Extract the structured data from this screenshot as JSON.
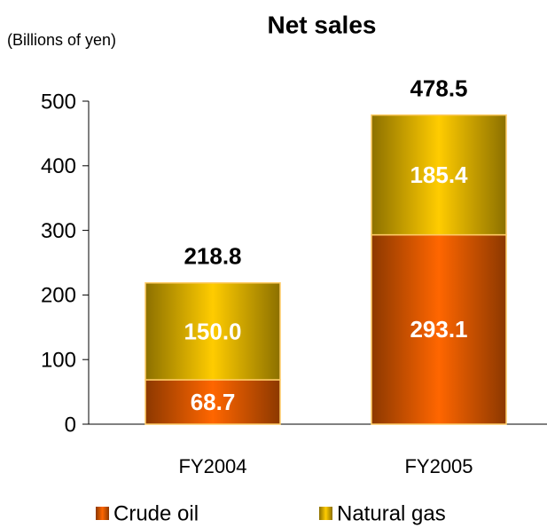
{
  "chart_data": {
    "type": "stacked_bar",
    "title": "Net sales",
    "y_axis_label": "(Billions of yen)",
    "categories": [
      "FY2004",
      "FY2005"
    ],
    "series": [
      {
        "name": "Crude oil",
        "color": "#ff6600",
        "values": [
          68.7,
          293.1
        ]
      },
      {
        "name": "Natural gas",
        "color": "#ffcc00",
        "values": [
          150.0,
          185.4
        ],
        "value_labels": [
          "150.0",
          "185.4"
        ]
      }
    ],
    "totals": [
      218.8,
      478.5
    ],
    "ylim": [
      0,
      500
    ],
    "yticks": [
      0,
      100,
      200,
      300,
      400,
      500
    ],
    "legend": "bottom"
  }
}
